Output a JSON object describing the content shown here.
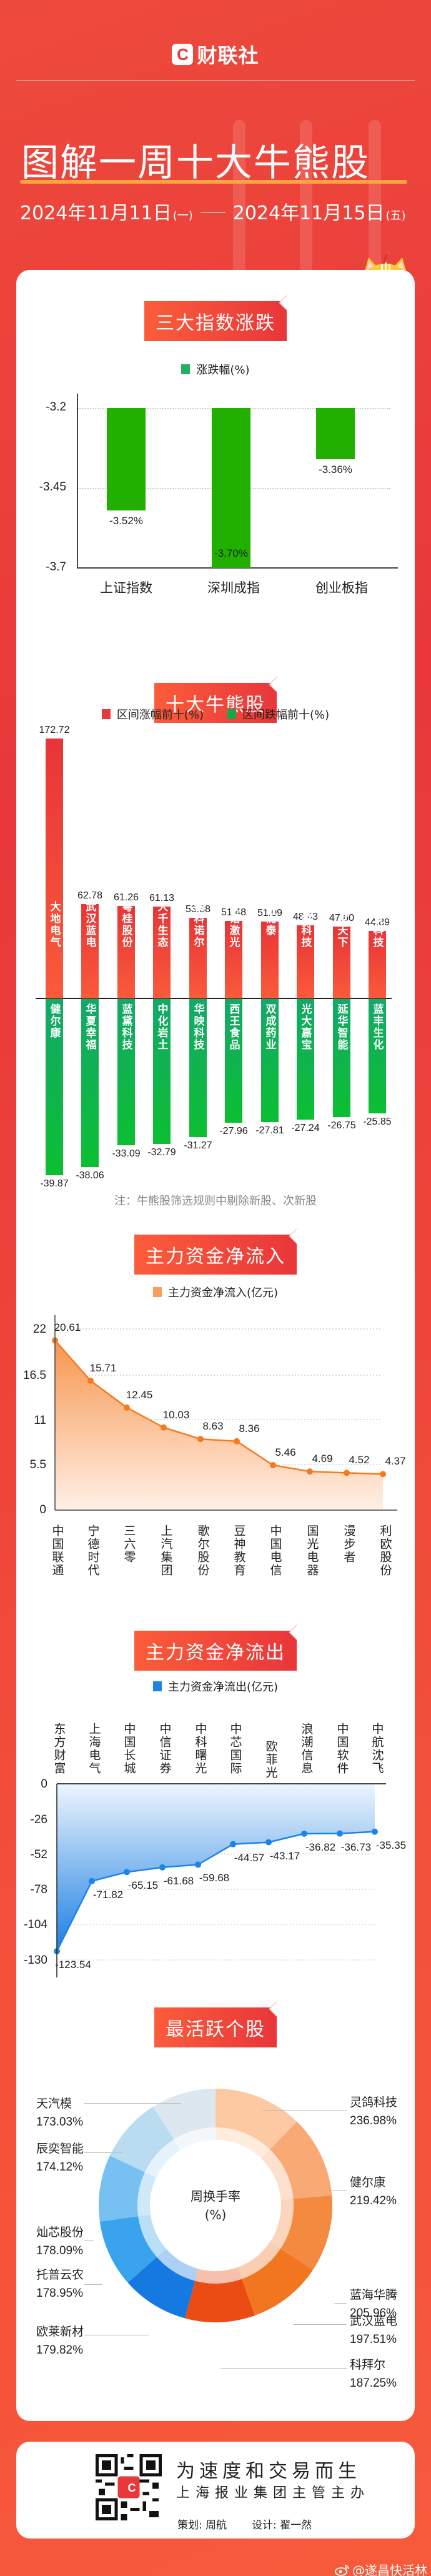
{
  "header": {
    "brand": "财联社",
    "brand_mark": "C",
    "title": "图解一周十大牛熊股",
    "date_start": "2024年11月11日",
    "date_start_weekday": "(一)",
    "date_end": "2024年11月15日",
    "date_end_weekday": "(五)"
  },
  "sections": {
    "index": {
      "title": "三大指数涨跌"
    },
    "bull_bear": {
      "title": "十大牛熊股",
      "note": "注：牛熊股筛选规则中剔除新股、次新股"
    },
    "inflow": {
      "title": "主力资金净流入"
    },
    "outflow": {
      "title": "主力资金净流出"
    },
    "active": {
      "title": "最活跃个股",
      "center_label": "周换手率",
      "center_unit": "(%)"
    }
  },
  "colors": {
    "brand_red": "#e8383a",
    "index_green": "#21b000",
    "bull_red_top": "#e83538",
    "bull_red_bottom": "#fa5a3a",
    "bear_green_top": "#14a86a",
    "bear_green_bottom": "#0bbf31",
    "inflow_orange": "#f57b21",
    "outflow_blue": "#1b84e6",
    "title_underline": "#f7a63d"
  },
  "chart_data": [
    {
      "type": "bar",
      "title": "三大指数涨跌",
      "legend": [
        "涨跌幅(%)"
      ],
      "categories": [
        "上证指数",
        "深圳成指",
        "创业板指"
      ],
      "values": [
        -3.52,
        -3.7,
        -3.36
      ],
      "value_labels": [
        "-3.52%",
        "-3.70%",
        "-3.36%"
      ],
      "yticks": [
        "-3.2",
        "-3.45",
        "-3.7"
      ],
      "ylim": [
        -3.7,
        -3.2
      ],
      "grid": true
    },
    {
      "type": "bar",
      "title": "十大牛熊股",
      "legend": [
        "区间涨幅前十(%)",
        "区间跌幅前十(%)"
      ],
      "series": [
        {
          "name": "区间涨幅前十(%)",
          "categories": [
            "大地电气",
            "武汉蓝电",
            "粤桂股份",
            "大千生态",
            "纳科诺尔",
            "英诺激光",
            "和而泰",
            "灵鸽科技",
            "易点天下",
            "三友科技"
          ],
          "values": [
            172.72,
            62.78,
            61.26,
            61.13,
            53.38,
            51.48,
            51.09,
            48.43,
            47.6,
            44.89
          ],
          "labels": [
            "172.72",
            "62.78",
            "61.26",
            "61.13",
            "53.38",
            "51.48",
            "51.09",
            "48.43",
            "47.60",
            "44.89"
          ]
        },
        {
          "name": "区间跌幅前十(%)",
          "categories": [
            "健尔康",
            "华夏幸福",
            "蓝黛科技",
            "中化岩土",
            "华映科技",
            "西王食品",
            "双成药业",
            "光大嘉宝",
            "延华智能",
            "蓝丰生化"
          ],
          "values": [
            -39.87,
            -38.06,
            -33.09,
            -32.79,
            -31.27,
            -27.96,
            -27.81,
            -27.24,
            -26.75,
            -25.85
          ],
          "labels": [
            "-39.87",
            "-38.06",
            "-33.09",
            "-32.79",
            "-31.27",
            "-27.96",
            "-27.81",
            "-27.24",
            "-26.75",
            "-25.85"
          ]
        }
      ],
      "grid": false
    },
    {
      "type": "area",
      "title": "主力资金净流入",
      "legend": [
        "主力资金净流入(亿元)"
      ],
      "categories": [
        "中国联通",
        "宁德时代",
        "三六零",
        "上汽集团",
        "歌尔股份",
        "豆神教育",
        "中国电信",
        "国光电器",
        "漫步者",
        "利欧股份"
      ],
      "values": [
        20.61,
        15.71,
        12.45,
        10.03,
        8.63,
        8.36,
        5.46,
        4.69,
        4.52,
        4.37
      ],
      "labels": [
        "20.61",
        "15.71",
        "12.45",
        "10.03",
        "8.63",
        "8.36",
        "5.46",
        "4.69",
        "4.52",
        "4.37"
      ],
      "yticks": [
        "22",
        "16.5",
        "11",
        "5.5",
        "0"
      ],
      "ylim": [
        0,
        22
      ],
      "grid": true
    },
    {
      "type": "area",
      "title": "主力资金净流出",
      "legend": [
        "主力资金净流出(亿元)"
      ],
      "categories": [
        "东方财富",
        "上海电气",
        "中国长城",
        "中信证券",
        "中科曙光",
        "中芯国际",
        "欧菲光",
        "浪潮信息",
        "中国软件",
        "中航沈飞"
      ],
      "values": [
        -123.54,
        -71.82,
        -65.15,
        -61.68,
        -59.68,
        -44.57,
        -43.17,
        -36.82,
        -36.73,
        -35.35
      ],
      "labels": [
        "-123.54",
        "-71.82",
        "-65.15",
        "-61.68",
        "-59.68",
        "-44.57",
        "-43.17",
        "-36.82",
        "-36.73",
        "-35.35"
      ],
      "yticks": [
        "0",
        "-26",
        "-52",
        "-78",
        "-104",
        "-130"
      ],
      "ylim": [
        -130,
        0
      ],
      "grid": true
    },
    {
      "type": "pie",
      "title": "最活跃个股",
      "center_text": "周换手率 (%)",
      "categories": [
        "灵鸽科技",
        "健尔康",
        "蓝海华腾",
        "武汉蓝电",
        "科拜尔",
        "欧莱新材",
        "托普云农",
        "灿芯股份",
        "辰奕智能",
        "天汽模"
      ],
      "values": [
        236.98,
        219.42,
        205.96,
        197.51,
        187.25,
        179.82,
        178.95,
        178.09,
        174.12,
        173.03
      ],
      "labels": [
        "236.98%",
        "219.42%",
        "205.96%",
        "197.51%",
        "187.25%",
        "179.82%",
        "178.95%",
        "178.09%",
        "174.12%",
        "173.03%"
      ],
      "colors": [
        "#fcc9a3",
        "#f9a974",
        "#f48a3f",
        "#f2761f",
        "#ea4c14",
        "#1479e0",
        "#3aa3ee",
        "#78c0f2",
        "#b9dcf1",
        "#dde7f0"
      ]
    }
  ],
  "footer": {
    "slogan": "为速度和交易而生",
    "sub": "上海报业集团主管主办",
    "planner_label": "策划:",
    "planner": "周航",
    "designer_label": "设计:",
    "designer": "翟一然",
    "qr_mark": "C",
    "weibo": "@遂昌快活林"
  }
}
